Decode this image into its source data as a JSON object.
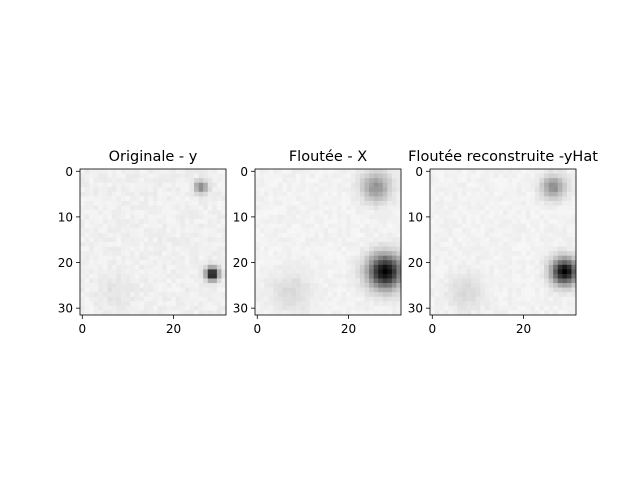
{
  "chart_data": [
    {
      "type": "heatmap",
      "title": "Originale - y",
      "colormap": "gray_r",
      "xlim": [
        -0.5,
        31.5
      ],
      "ylim": [
        31.5,
        -0.5
      ],
      "xticks": [
        0,
        20
      ],
      "yticks": [
        0,
        10,
        20,
        30
      ],
      "grid": false,
      "background_level": 0.06,
      "blobs": [
        {
          "x": 26,
          "y": 3.5,
          "sigma": 1.0,
          "intensity": 0.45
        },
        {
          "x": 28.5,
          "y": 22.5,
          "sigma": 1.0,
          "intensity": 0.95
        },
        {
          "x": 7,
          "y": 27,
          "sigma": 2.5,
          "intensity": 0.05
        }
      ]
    },
    {
      "type": "heatmap",
      "title": "Floutée - X",
      "colormap": "gray_r",
      "xlim": [
        -0.5,
        31.5
      ],
      "ylim": [
        31.5,
        -0.5
      ],
      "xticks": [
        0,
        20
      ],
      "yticks": [
        0,
        10,
        20,
        30
      ],
      "grid": false,
      "background_level": 0.05,
      "blobs": [
        {
          "x": 26,
          "y": 3.5,
          "sigma": 2.2,
          "intensity": 0.38
        },
        {
          "x": 28,
          "y": 22,
          "sigma": 2.6,
          "intensity": 0.95
        },
        {
          "x": 7.5,
          "y": 26.5,
          "sigma": 3.0,
          "intensity": 0.1
        }
      ]
    },
    {
      "type": "heatmap",
      "title": "Floutée reconstruite -yHat",
      "colormap": "gray_r",
      "xlim": [
        -0.5,
        31.5
      ],
      "ylim": [
        31.5,
        -0.5
      ],
      "xticks": [
        0,
        20
      ],
      "yticks": [
        0,
        10,
        20,
        30
      ],
      "grid": false,
      "background_level": 0.05,
      "blobs": [
        {
          "x": 26.5,
          "y": 3.5,
          "sigma": 1.8,
          "intensity": 0.4
        },
        {
          "x": 29,
          "y": 22,
          "sigma": 2.0,
          "intensity": 0.95
        },
        {
          "x": 7.5,
          "y": 26.5,
          "sigma": 2.8,
          "intensity": 0.1
        }
      ]
    }
  ]
}
